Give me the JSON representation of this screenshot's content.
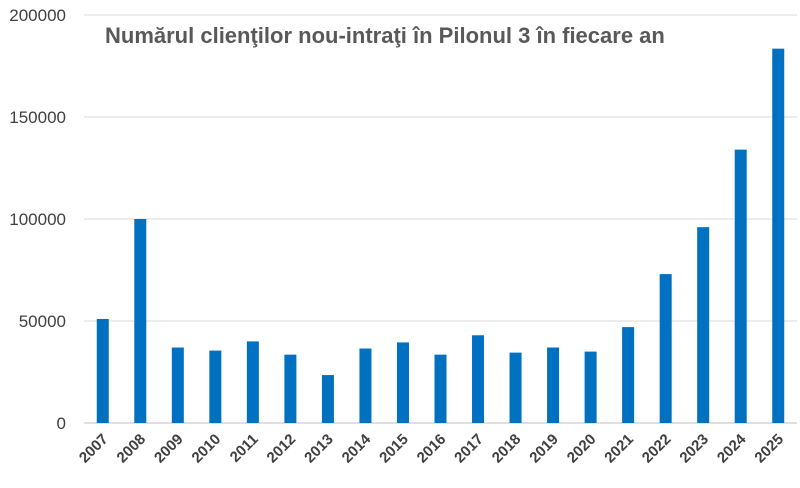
{
  "chart_data": {
    "type": "bar",
    "title": "Numărul clienţilor nou-intraţi în Pilonul 3 în fiecare an",
    "categories": [
      "2007",
      "2008",
      "2009",
      "2010",
      "2011",
      "2012",
      "2013",
      "2014",
      "2015",
      "2016",
      "2017",
      "2018",
      "2019",
      "2020",
      "2021",
      "2022",
      "2023",
      "2024",
      "2025"
    ],
    "series": [
      {
        "values": [
          51000,
          100000,
          37000,
          35500,
          40000,
          33500,
          23500,
          36500,
          39500,
          33500,
          43000,
          34500,
          37000,
          35000,
          47000,
          73000,
          96000,
          134000,
          183500
        ],
        "color": "#0070c0"
      }
    ],
    "ylim": [
      0,
      200000
    ],
    "yticks": [
      0,
      50000,
      100000,
      150000,
      200000
    ],
    "grid": true,
    "legend": "none"
  }
}
